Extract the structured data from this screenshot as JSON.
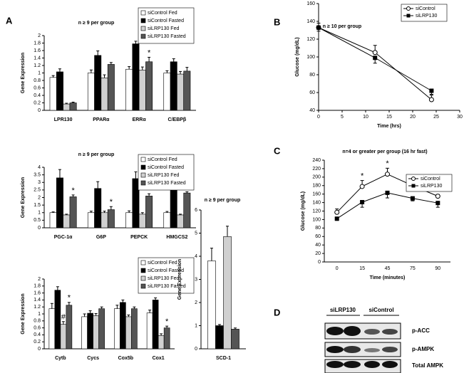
{
  "panel_labels": [
    "A",
    "B",
    "C",
    "D"
  ],
  "chart_data": [
    {
      "type": "bar",
      "title": "n ≥ 9 per group",
      "y_label": "Gene Expression",
      "legend": true,
      "categories": [
        "LPR130",
        "PPARα",
        "ERRα",
        "C/EBPβ"
      ],
      "series": [
        {
          "name": "siControl Fed",
          "color": "#ffffff",
          "values": [
            0.88,
            1.0,
            1.1,
            1.0
          ],
          "errors": [
            0.05,
            0.08,
            0.07,
            0.06
          ]
        },
        {
          "name": "siControl Fasted",
          "color": "#000000",
          "values": [
            1.03,
            1.47,
            1.78,
            1.3
          ],
          "errors": [
            0.08,
            0.12,
            0.07,
            0.08
          ]
        },
        {
          "name": "siLRP130 Fed",
          "color": "#d0d0d0",
          "values": [
            0.17,
            0.87,
            1.08,
            0.97
          ],
          "errors": [
            0.02,
            0.08,
            0.08,
            0.07
          ]
        },
        {
          "name": "siLRP130 Fasted",
          "color": "#555555",
          "values": [
            0.2,
            1.23,
            1.3,
            1.05
          ],
          "errors": [
            0.02,
            0.05,
            0.12,
            0.1
          ]
        }
      ],
      "annotations": [
        {
          "text": "*",
          "at": [
            3,
            2
          ]
        }
      ],
      "ylim": [
        0,
        2
      ],
      "yticks": [
        0,
        0.2,
        0.4,
        0.6,
        0.8,
        1,
        1.2,
        1.4,
        1.6,
        1.8,
        2
      ]
    },
    {
      "type": "bar",
      "title": "n ≥ 9 per group",
      "y_label": "Gene Expression",
      "legend": true,
      "categories": [
        "PGC-1α",
        "G6P",
        "PEPCK",
        "HMGCS2"
      ],
      "series": [
        {
          "name": "siControl Fed",
          "color": "#ffffff",
          "values": [
            1.0,
            1.0,
            1.0,
            1.0
          ],
          "errors": [
            0.05,
            0.1,
            0.12,
            0.08
          ]
        },
        {
          "name": "siControl Fasted",
          "color": "#000000",
          "values": [
            3.3,
            2.6,
            3.25,
            3.0
          ],
          "errors": [
            0.55,
            0.45,
            0.45,
            0.15
          ]
        },
        {
          "name": "siLRP130 Fed",
          "color": "#d0d0d0",
          "values": [
            0.85,
            1.0,
            0.9,
            0.85
          ],
          "errors": [
            0.05,
            0.1,
            0.1,
            0.05
          ]
        },
        {
          "name": "siLRP130 Fasted",
          "color": "#555555",
          "values": [
            2.05,
            1.2,
            2.1,
            2.3
          ],
          "errors": [
            0.12,
            0.2,
            0.15,
            0.08
          ]
        }
      ],
      "annotations": [
        {
          "text": "*",
          "at": [
            3,
            0
          ]
        },
        {
          "text": "*",
          "at": [
            3,
            1
          ]
        },
        {
          "text": "*",
          "at": [
            3,
            2
          ]
        }
      ],
      "ylim": [
        0,
        4
      ],
      "yticks": [
        0,
        0.5,
        1,
        1.5,
        2,
        2.5,
        3,
        3.5,
        4
      ]
    },
    {
      "type": "bar",
      "y_label": "Gene Expression",
      "legend": true,
      "categories": [
        "Cytb",
        "Cycs",
        "Cox5b",
        "Cox1"
      ],
      "series": [
        {
          "name": "siControl Fed",
          "color": "#ffffff",
          "values": [
            1.15,
            0.92,
            1.15,
            1.03
          ],
          "errors": [
            0.15,
            0.08,
            0.1,
            0.08
          ]
        },
        {
          "name": "siControl Fasted",
          "color": "#000000",
          "values": [
            1.68,
            1.02,
            1.33,
            1.4
          ],
          "errors": [
            0.1,
            0.07,
            0.07,
            0.06
          ]
        },
        {
          "name": "siLRP130 Fed",
          "color": "#d0d0d0",
          "values": [
            0.7,
            0.95,
            0.92,
            0.38
          ],
          "errors": [
            0.08,
            0.06,
            0.05,
            0.05
          ]
        },
        {
          "name": "siLRP130 Fasted",
          "color": "#555555",
          "values": [
            1.25,
            1.15,
            1.15,
            0.6
          ],
          "errors": [
            0.08,
            0.05,
            0.05,
            0.05
          ]
        }
      ],
      "annotations": [
        {
          "text": "#",
          "at": [
            2,
            0
          ]
        },
        {
          "text": "*",
          "at": [
            3,
            0
          ]
        },
        {
          "text": "*",
          "at": [
            3,
            3
          ]
        }
      ],
      "ylim": [
        0,
        2
      ],
      "yticks": [
        0,
        0.2,
        0.4,
        0.6,
        0.8,
        1,
        1.2,
        1.4,
        1.6,
        1.8,
        2
      ]
    },
    {
      "type": "bar",
      "title": "n ≥ 9 per group",
      "y_label": "Gene Expression",
      "legend": false,
      "categories": [
        "SCD-1"
      ],
      "series": [
        {
          "name": "siControl Fed",
          "color": "#ffffff",
          "values": [
            3.8
          ],
          "errors": [
            0.55
          ]
        },
        {
          "name": "siControl Fasted",
          "color": "#000000",
          "values": [
            1.0
          ],
          "errors": [
            0.05
          ]
        },
        {
          "name": "siLRP130 Fed",
          "color": "#d0d0d0",
          "values": [
            4.85
          ],
          "errors": [
            0.45
          ]
        },
        {
          "name": "siLRP130 Fasted",
          "color": "#555555",
          "values": [
            0.85
          ],
          "errors": [
            0.05
          ]
        }
      ],
      "annotations": [],
      "ylim": [
        0,
        6
      ],
      "yticks": [
        0,
        1,
        2,
        3,
        4,
        5,
        6
      ]
    },
    {
      "type": "line",
      "title": "n ≥ 10 per group",
      "x_label": "Time (hrs)",
      "y_label": "Glucose (mg/dL)",
      "legend": true,
      "x": [
        0,
        12,
        24
      ],
      "series": [
        {
          "name": "siControl",
          "color": "#000000",
          "marker": "circle",
          "values": [
            133,
            105,
            52
          ],
          "errors": [
            5,
            8,
            5
          ]
        },
        {
          "name": "siLRP130",
          "color": "#000000",
          "marker": "square",
          "values": [
            133,
            99,
            62
          ],
          "errors": [
            4,
            6,
            4
          ]
        }
      ],
      "annotations": [],
      "xlim": [
        0,
        30
      ],
      "xticks": [
        0,
        5,
        10,
        15,
        20,
        25,
        30
      ],
      "ylim": [
        40,
        160
      ],
      "yticks": [
        40,
        60,
        80,
        100,
        120,
        140,
        160
      ]
    },
    {
      "type": "line",
      "title": "n=4 or greater per group (16 hr fast)",
      "x_label": "Time (minutes)",
      "y_label": "Glucose (mg/dL)",
      "legend": true,
      "categories": [
        "0",
        "15",
        "45",
        "75",
        "90"
      ],
      "series": [
        {
          "name": "siControl",
          "color": "#000000",
          "marker": "circle",
          "values": [
            117,
            178,
            207,
            180,
            155
          ],
          "errors": [
            8,
            14,
            14,
            22,
            4
          ]
        },
        {
          "name": "siLRP130",
          "color": "#000000",
          "marker": "square",
          "values": [
            102,
            141,
            163,
            150,
            139
          ],
          "errors": [
            4,
            12,
            12,
            6,
            10
          ]
        }
      ],
      "annotations": [
        {
          "text": "*",
          "at": [
            0,
            1
          ]
        },
        {
          "text": "*",
          "at": [
            0,
            2
          ]
        }
      ],
      "ylim": [
        0,
        240
      ],
      "yticks": [
        0,
        20,
        40,
        60,
        80,
        100,
        120,
        140,
        160,
        180,
        200,
        220,
        240
      ]
    }
  ],
  "blot": {
    "groups": [
      "siLRP130",
      "siControl"
    ],
    "rows": [
      "p-ACC",
      "p-AMPK",
      "Total AMPK"
    ]
  }
}
